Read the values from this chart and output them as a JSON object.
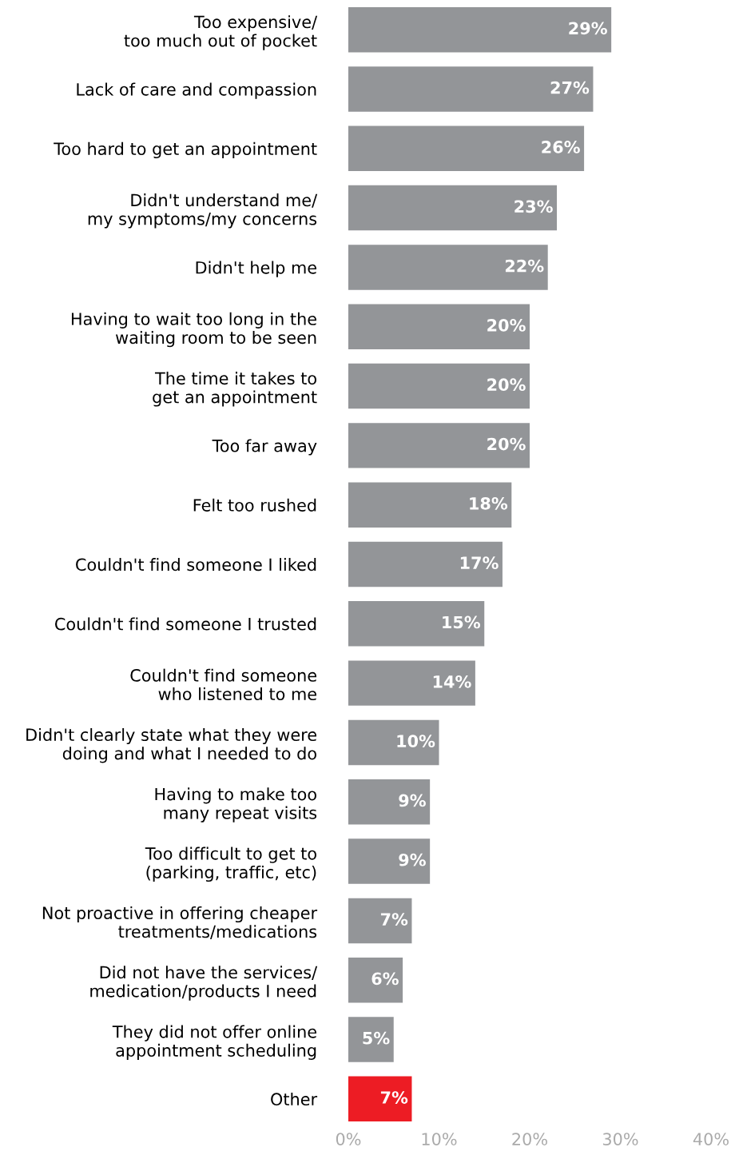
{
  "chart_data": {
    "type": "bar",
    "orientation": "horizontal",
    "categories": [
      "Too expensive/\ntoo much out of pocket",
      "Lack of care and compassion",
      "Too hard to get an appointment",
      "Didn't understand me/\nmy symptoms/my concerns",
      "Didn't help me",
      "Having to wait too long in the\nwaiting room to be seen",
      "The time it takes to\nget an appointment",
      "Too far away",
      "Felt too rushed",
      "Couldn't find someone I liked",
      "Couldn't find someone I trusted",
      "Couldn't find someone\nwho listened to me",
      "Didn't clearly state what they were\ndoing and what I needed to do",
      "Having to make too\nmany repeat visits",
      "Too difficult to get to\n(parking, traffic, etc)",
      "Not proactive in offering cheaper\ntreatments/medications",
      "Did not have the services/\nmedication/products I need",
      "They did not offer online\nappointment scheduling",
      "Other"
    ],
    "values": [
      29,
      27,
      26,
      23,
      22,
      20,
      20,
      20,
      18,
      17,
      15,
      14,
      10,
      9,
      9,
      7,
      6,
      5,
      7
    ],
    "colors": [
      "#939598",
      "#939598",
      "#939598",
      "#939598",
      "#939598",
      "#939598",
      "#939598",
      "#939598",
      "#939598",
      "#939598",
      "#939598",
      "#939598",
      "#939598",
      "#939598",
      "#939598",
      "#939598",
      "#939598",
      "#939598",
      "#ed1c24"
    ],
    "value_labels": [
      "29%",
      "27%",
      "26%",
      "23%",
      "22%",
      "20%",
      "20%",
      "20%",
      "18%",
      "17%",
      "15%",
      "14%",
      "10%",
      "9%",
      "9%",
      "7%",
      "6%",
      "5%",
      "7%"
    ],
    "xlim": [
      0,
      40
    ],
    "xticks": [
      {
        "value": 0,
        "label": "0%"
      },
      {
        "value": 10,
        "label": "10%"
      },
      {
        "value": 20,
        "label": "20%"
      },
      {
        "value": 30,
        "label": "30%"
      },
      {
        "value": 40,
        "label": "40%"
      }
    ]
  }
}
